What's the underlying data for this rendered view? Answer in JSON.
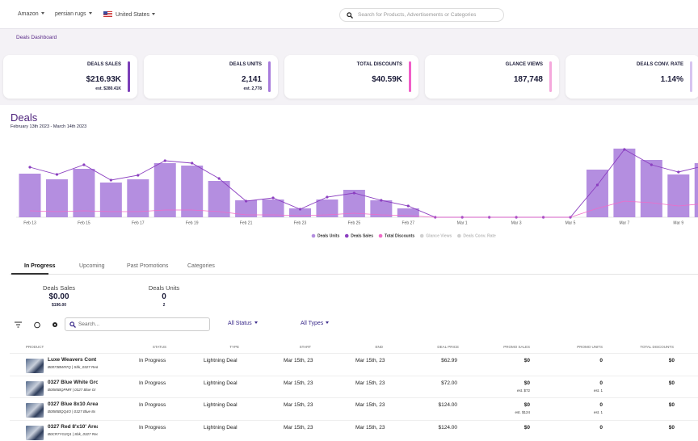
{
  "topbar": {
    "marketplace": "Amazon",
    "keyword": "persian rugs",
    "country": "United States",
    "search_placeholder": "Search for Products, Advertisements or Categories"
  },
  "nav": {
    "active": "Deals Dashboard"
  },
  "kpis": [
    {
      "label": "DEALS SALES",
      "value": "$216.93K",
      "estimate": "est. $280.41K",
      "color": "#7b3fb8"
    },
    {
      "label": "DEALS UNITS",
      "value": "2,141",
      "estimate": "est. 2,778",
      "color": "#a77bdc"
    },
    {
      "label": "TOTAL DISCOUNTS",
      "value": "$40.59K",
      "color": "#f05ec8"
    },
    {
      "label": "GLANCE VIEWS",
      "value": "187,748",
      "color": "#f5a8dc"
    },
    {
      "label": "DEALS CONV. RATE",
      "value": "1.14%",
      "color": "#d7c4f0"
    }
  ],
  "deals": {
    "title": "Deals",
    "subtitle": "February 13th 2023 - March 14th 2023"
  },
  "chart_data": {
    "type": "bar",
    "categories": [
      "Feb 13",
      null,
      "Feb 15",
      null,
      "Feb 17",
      null,
      "Feb 19",
      null,
      "Feb 21",
      null,
      "Feb 23",
      null,
      "Feb 25",
      null,
      "Feb 27",
      null,
      "Mar 1",
      null,
      "Mar 3",
      null,
      "Mar 5",
      null,
      "Mar 7",
      null,
      "Mar 9",
      null
    ],
    "ylim": [
      0,
      90
    ],
    "series": [
      {
        "name": "Deals Units",
        "type": "bar",
        "color": "#b48ee0",
        "values": [
          54,
          47,
          60,
          43,
          47,
          67,
          64,
          45,
          21,
          22,
          11,
          22,
          34,
          21,
          11,
          0,
          0,
          0,
          0,
          0,
          0,
          59,
          85,
          71,
          53,
          67
        ]
      },
      {
        "name": "Deals Sales",
        "type": "line",
        "color": "#8b3fc0",
        "values": [
          62,
          53,
          65,
          46,
          52,
          70,
          67,
          48,
          20,
          24,
          10,
          25,
          30,
          21,
          14,
          0,
          0,
          0,
          0,
          0,
          0,
          40,
          84,
          65,
          56,
          64
        ]
      },
      {
        "name": "Total Discounts",
        "type": "line",
        "color": "#f06bc8",
        "values": [
          8,
          7,
          8,
          7,
          7,
          9,
          9,
          7,
          3,
          3,
          2,
          3,
          5,
          3,
          2,
          0,
          0,
          0,
          0,
          0,
          0,
          11,
          20,
          18,
          14,
          17
        ]
      },
      {
        "name": "Glance Views",
        "color": "#cfcfcf",
        "hidden": true
      },
      {
        "name": "Deals Conv. Rate",
        "color": "#cfcfcf",
        "hidden": true
      }
    ]
  },
  "tabs": {
    "items": [
      "In Progress",
      "Upcoming",
      "Past Promotions",
      "Categories"
    ],
    "active": 0
  },
  "summary": [
    {
      "label": "Deals Sales",
      "value": "$0.00",
      "sub": "$196.00"
    },
    {
      "label": "Deals Units",
      "value": "0",
      "sub": "2"
    }
  ],
  "toolbar": {
    "search_placeholder": "Search...",
    "status_filter": "All Status",
    "type_filter": "All Types"
  },
  "table": {
    "headers": [
      "PRODUCT",
      "STATUS",
      "TYPE",
      "START",
      "END",
      "DEAL PRICE",
      "PROMO SALES",
      "PROMO UNITS",
      "TOTAL DISCOUNTS"
    ],
    "rows": [
      {
        "product": "Luxe Weavers Cont",
        "asin": "B0073BW97Q | Sbk_0327 Red",
        "status": "In Progress",
        "type": "Lightning Deal",
        "start": "Mar 15th, 23",
        "end": "Mar 15th, 23",
        "deal_price": "$62.99",
        "promo_sales": "$0",
        "promo_units": "0",
        "total_discounts": "$0"
      },
      {
        "product": "0327 Blue White Gro",
        "asin": "B0085BQPMR | 0327 Blue Gr",
        "status": "In Progress",
        "type": "Lightning Deal",
        "start": "Mar 15th, 23",
        "end": "Mar 15th, 23",
        "deal_price": "$72.00",
        "promo_sales": "$0",
        "promo_sales_est": "est. $72",
        "promo_units": "0",
        "promo_units_est": "est. 1",
        "total_discounts": "$0"
      },
      {
        "product": "0327 Blue 8x10 Area",
        "asin": "B0085BQQ4O | 0327 Blue 8x",
        "status": "In Progress",
        "type": "Lightning Deal",
        "start": "Mar 15th, 23",
        "end": "Mar 15th, 23",
        "deal_price": "$124.00",
        "promo_sales": "$0",
        "promo_sales_est": "est. $124",
        "promo_units": "0",
        "promo_units_est": "est. 1",
        "total_discounts": "$0"
      },
      {
        "product": "0327 Red 8'x10' Area",
        "asin": "B0CR7YG2Q1 | Sbk_0327 Red",
        "status": "In Progress",
        "type": "Lightning Deal",
        "start": "Mar 15th, 23",
        "end": "Mar 15th, 23",
        "deal_price": "$124.00",
        "promo_sales": "$0",
        "promo_units": "0",
        "total_discounts": "$0"
      }
    ]
  }
}
